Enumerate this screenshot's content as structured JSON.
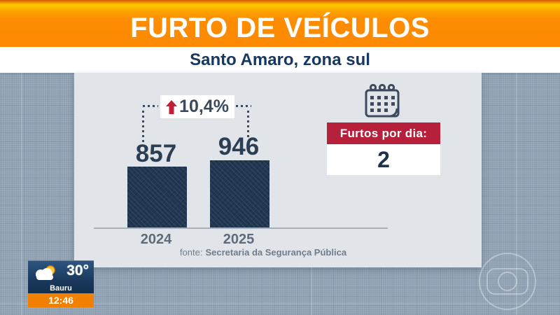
{
  "header": {
    "title": "FURTO DE VEÍCULOS",
    "subtitle": "Santo Amaro, zona sul"
  },
  "chart_data": {
    "type": "bar",
    "title": "FURTO DE VEÍCULOS",
    "subtitle": "Santo Amaro, zona sul",
    "categories": [
      "2024",
      "2025"
    ],
    "values": [
      857,
      946
    ],
    "value_labels": [
      "857",
      "946"
    ],
    "change": {
      "label": "10,4%",
      "direction": "up"
    },
    "source": {
      "prefix": "fonte:",
      "name": "Secretaria da Segurança Pública"
    },
    "ylim": [
      0,
      946
    ],
    "grid": false,
    "legend": "none",
    "bar_color": "#213751"
  },
  "stat_box": {
    "icon": "calendar-icon",
    "label": "Furtos por dia:",
    "value": "2"
  },
  "weather": {
    "icon": "sun-cloud-icon",
    "temperature": "30°",
    "city": "Bauru",
    "time": "12:46"
  },
  "colors": {
    "banner_orange": "#fd8903",
    "banner_gradient_yellow": "#fecb00",
    "subtitle_navy": "#16375f",
    "page_bg": "#8d9fb1",
    "card_bg": "#e1e5e9",
    "bar_navy": "#213751",
    "accent_red": "#b7203a",
    "arrow_red": "#c21f38",
    "text_navy": "#2c3e54",
    "axis_gray": "#a8b1b9",
    "time_orange": "#f28000"
  }
}
